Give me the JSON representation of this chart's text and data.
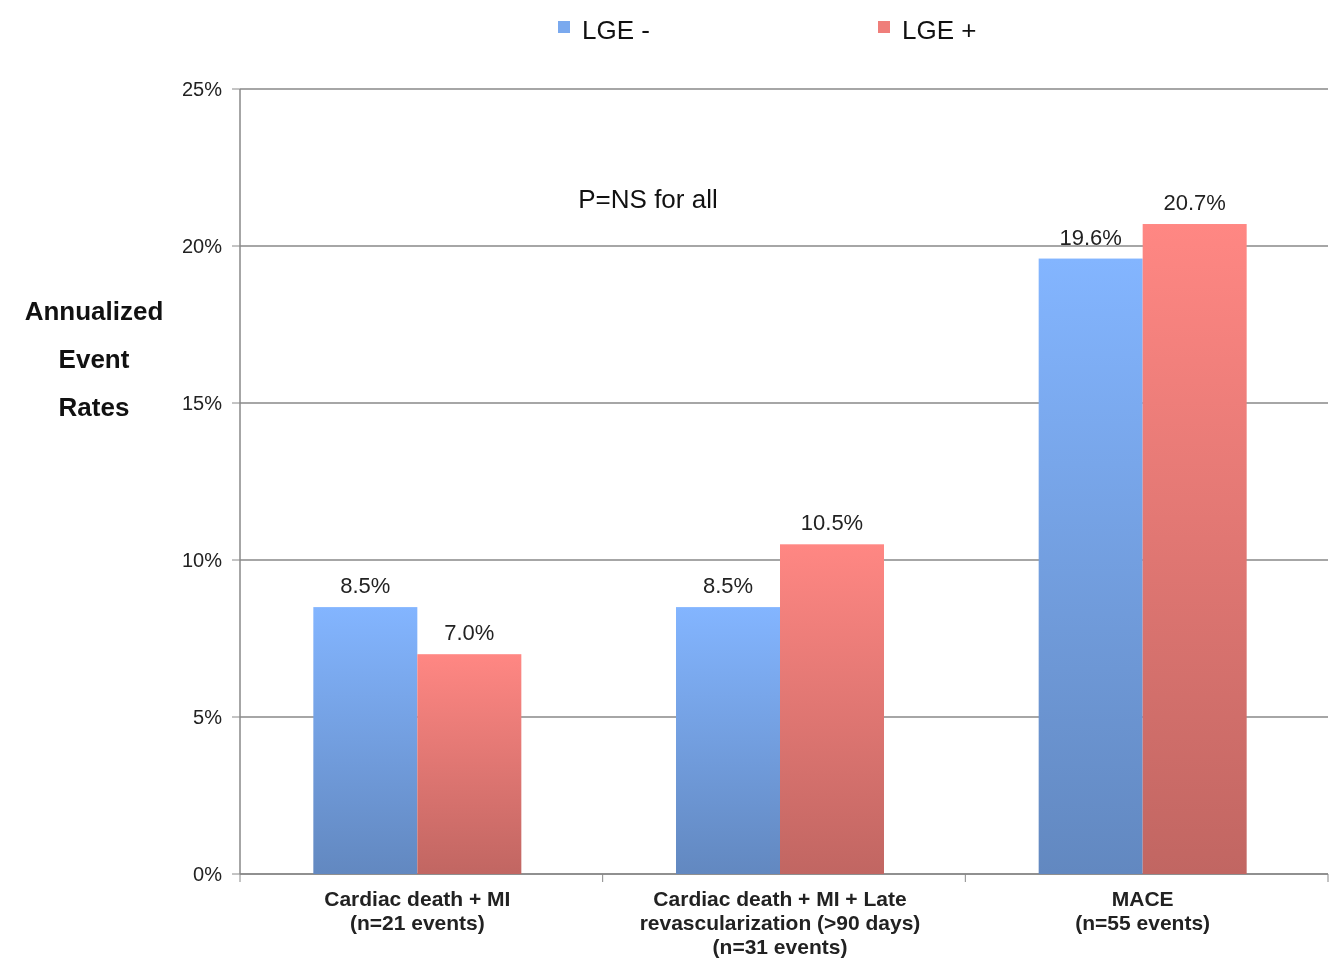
{
  "chart_data": {
    "type": "bar",
    "ylabel": "Annualized Event Rates",
    "categories": [
      "Cardiac death + MI\n(n=21 events)",
      "Cardiac death + MI + Late\nrevascularization (>90 days)\n(n=31 events)",
      "MACE\n(n=55 events)"
    ],
    "series": [
      {
        "name": "LGE -",
        "color": "#7aa9ee",
        "values": [
          8.5,
          8.5,
          19.6
        ],
        "value_labels": [
          "8.5%",
          "8.5%",
          "19.6%"
        ]
      },
      {
        "name": "LGE +",
        "color": "#ef7e7a",
        "values": [
          7.0,
          10.5,
          20.7
        ],
        "value_labels": [
          "7.0%",
          "10.5%",
          "20.7%"
        ]
      }
    ],
    "ylim": [
      0,
      25
    ],
    "yticks": [
      {
        "value": 0,
        "label": "0%"
      },
      {
        "value": 5,
        "label": "5%"
      },
      {
        "value": 10,
        "label": "10%"
      },
      {
        "value": 15,
        "label": "15%"
      },
      {
        "value": 20,
        "label": "20%"
      },
      {
        "value": 25,
        "label": "25%"
      }
    ],
    "grid": "y",
    "legend": "top",
    "annotations": [
      "P=NS for all"
    ]
  }
}
